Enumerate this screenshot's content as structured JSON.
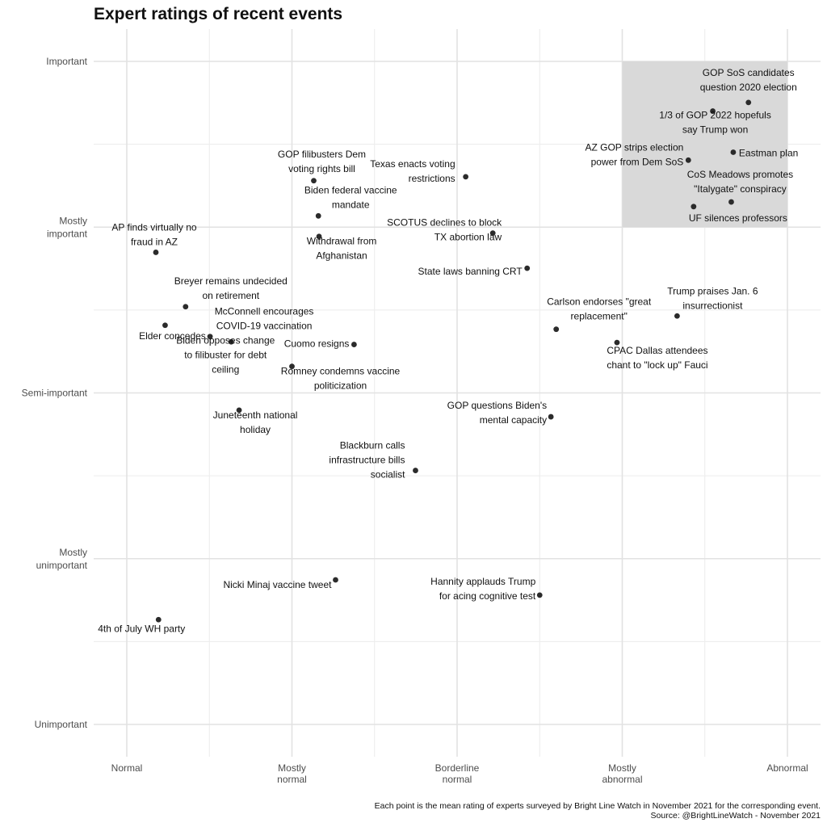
{
  "chart_data": {
    "type": "scatter",
    "title": "Expert ratings of recent events",
    "xlabel": "",
    "ylabel": "",
    "xlim": [
      0,
      100
    ],
    "ylim": [
      0,
      100
    ],
    "x_ticks": [
      {
        "value": 0,
        "label": "Normal"
      },
      {
        "value": 25,
        "label": "Mostly\nnormal"
      },
      {
        "value": 50,
        "label": "Borderline\nnormal"
      },
      {
        "value": 75,
        "label": "Mostly\nabnormal"
      },
      {
        "value": 100,
        "label": "Abnormal"
      }
    ],
    "y_ticks": [
      {
        "value": 0,
        "label": "Unimportant"
      },
      {
        "value": 25,
        "label": "Mostly\nunimportant"
      },
      {
        "value": 50,
        "label": "Semi-important"
      },
      {
        "value": 75,
        "label": "Mostly\nimportant"
      },
      {
        "value": 100,
        "label": "Important"
      }
    ],
    "highlight_region": {
      "x": [
        75,
        100
      ],
      "y": [
        75,
        100
      ]
    },
    "caption": [
      "Each point is the mean rating of experts surveyed by Bright Line Watch in November 2021 for the corresponding event.",
      "Source: @BrightLineWatch - November 2021"
    ],
    "points": [
      {
        "label": "GOP SoS candidates\nquestion 2020 election",
        "x": 94.1,
        "y": 93.8,
        "anchor": "middle",
        "dx": 0,
        "dy": -28
      },
      {
        "label": "1/3 of GOP 2022 hopefuls\nsay Trump won",
        "x": 88.7,
        "y": 92.5,
        "anchor": "middle",
        "dx": 3,
        "dy": 14
      },
      {
        "label": "Eastman plan",
        "x": 91.8,
        "y": 86.3,
        "anchor": "start",
        "dx": 7,
        "dy": 1
      },
      {
        "label": "AZ GOP strips election\npower from Dem SoS",
        "x": 85.0,
        "y": 85.1,
        "anchor": "end",
        "dx": -6,
        "dy": -7
      },
      {
        "label": "CoS Meadows promotes\n\"Italygate\" conspiracy",
        "x": 91.5,
        "y": 78.8,
        "anchor": "middle",
        "dx": 11,
        "dy": -25
      },
      {
        "label": "UF silences professors",
        "x": 85.8,
        "y": 78.1,
        "anchor": "start",
        "dx": -6,
        "dy": 14
      },
      {
        "label": "Texas enacts voting\nrestrictions",
        "x": 51.3,
        "y": 82.6,
        "anchor": "end",
        "dx": -13,
        "dy": -7
      },
      {
        "label": "SCOTUS declines to block\nTX abortion law",
        "x": 55.4,
        "y": 74.1,
        "anchor": "end",
        "dx": 11,
        "dy": -4
      },
      {
        "label": "State laws banning CRT",
        "x": 60.6,
        "y": 68.8,
        "anchor": "end",
        "dx": -6,
        "dy": 4
      },
      {
        "label": "Trump praises Jan. 6\ninsurrectionist",
        "x": 83.3,
        "y": 61.6,
        "anchor": "middle",
        "dx": 44,
        "dy": -22
      },
      {
        "label": "Carlson endorses \"great\nreplacement\"",
        "x": 65.0,
        "y": 59.6,
        "anchor": "middle",
        "dx": 53,
        "dy": -25
      },
      {
        "label": "CPAC Dallas attendees\nchant to \"lock up\" Fauci",
        "x": 74.2,
        "y": 57.6,
        "anchor": "middle",
        "dx": 50,
        "dy": 19
      },
      {
        "label": "GOP questions Biden's\nmental capacity",
        "x": 64.2,
        "y": 46.4,
        "anchor": "end",
        "dx": -5,
        "dy": -5
      },
      {
        "label": "Blackburn calls\ninfrastructure bills\nsocialist",
        "x": 43.7,
        "y": 38.3,
        "anchor": "end",
        "dx": -13,
        "dy": -13
      },
      {
        "label": "Hannity applauds Trump\nfor acing cognitive test",
        "x": 62.5,
        "y": 19.5,
        "anchor": "end",
        "dx": -5,
        "dy": -8
      },
      {
        "label": "GOP filibusters Dem\nvoting rights bill",
        "x": 28.3,
        "y": 82.0,
        "anchor": "middle",
        "dx": 10,
        "dy": -24
      },
      {
        "label": "Biden federal vaccine\nmandate",
        "x": 29.0,
        "y": 76.7,
        "anchor": "middle",
        "dx": 40,
        "dy": -23
      },
      {
        "label": "Withdrawal from\nAfghanistan",
        "x": 29.1,
        "y": 73.6,
        "anchor": "middle",
        "dx": 28,
        "dy": 15
      },
      {
        "label": "AP finds virtually no\nfraud in AZ",
        "x": 4.4,
        "y": 71.2,
        "anchor": "middle",
        "dx": -2,
        "dy": -22
      },
      {
        "label": "Breyer remains undecided\non retirement",
        "x": 8.9,
        "y": 63.0,
        "anchor": "middle",
        "dx": 56,
        "dy": -23
      },
      {
        "label": "McConnell encourages\nCOVID-19 vaccination",
        "x": 12.6,
        "y": 58.5,
        "anchor": "middle",
        "dx": 67,
        "dy": -22
      },
      {
        "label": "Elder concedes",
        "x": 5.8,
        "y": 60.2,
        "anchor": "middle",
        "dx": 9,
        "dy": 13
      },
      {
        "label": "Biden opposes change\nto filibuster for debt\nceiling",
        "x": 15.8,
        "y": 57.7,
        "anchor": "middle",
        "dx": -7,
        "dy": 16
      },
      {
        "label": "Cuomo resigns",
        "x": 34.4,
        "y": 57.3,
        "anchor": "end",
        "dx": -6,
        "dy": -1
      },
      {
        "label": "Romney condemns vaccine\npoliticization",
        "x": 25.0,
        "y": 54.0,
        "anchor": "middle",
        "dx": 60,
        "dy": 15
      },
      {
        "label": "Juneteenth national\nholiday",
        "x": 17.0,
        "y": 47.4,
        "anchor": "middle",
        "dx": 20,
        "dy": 15
      },
      {
        "label": "Nicki Minaj vaccine tweet",
        "x": 31.6,
        "y": 21.8,
        "anchor": "end",
        "dx": -5,
        "dy": 6
      },
      {
        "label": "4th of July WH party",
        "x": 4.8,
        "y": 15.8,
        "anchor": "middle",
        "dx": -21,
        "dy": 11
      }
    ]
  }
}
